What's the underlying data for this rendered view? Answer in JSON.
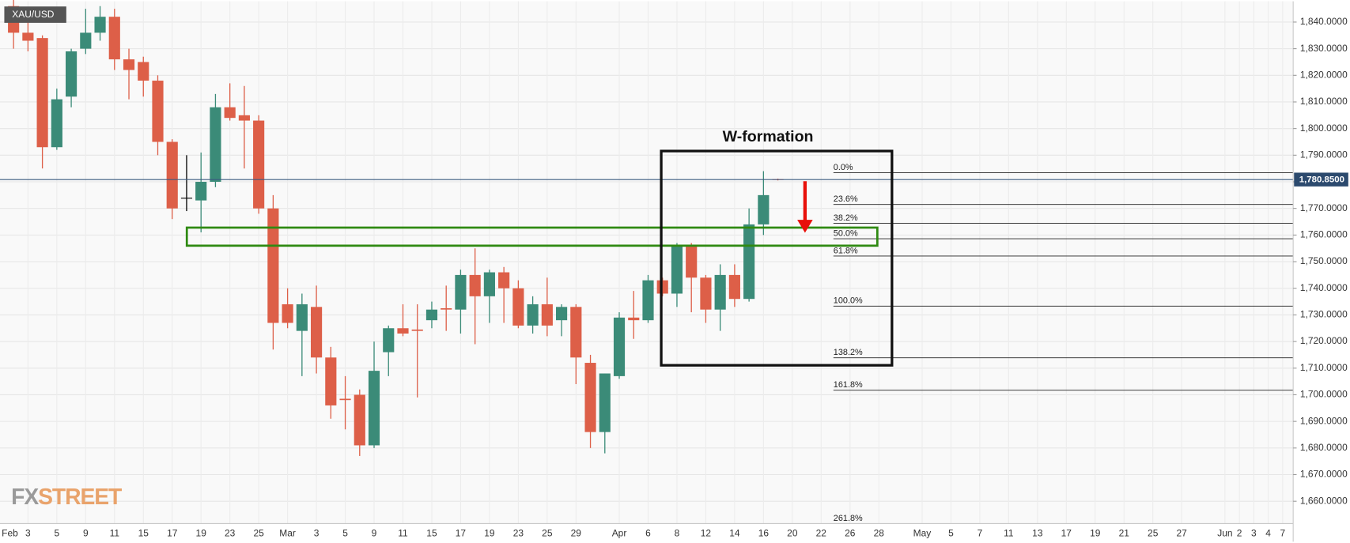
{
  "chart_data": {
    "type": "candlestick",
    "title": "XAU/USD",
    "annotation": "W-formation",
    "watermark": [
      "FX",
      "STREET"
    ],
    "up_color": "#3b8b78",
    "down_color": "#dd5f48",
    "doji_color": "#000000",
    "categories": [
      "Feb",
      null,
      "3",
      null,
      "5",
      null,
      "9",
      null,
      "11",
      null,
      "15",
      null,
      "17",
      null,
      "19",
      null,
      "23",
      null,
      "25",
      null,
      "Mar",
      null,
      "3",
      null,
      "5",
      null,
      "9",
      null,
      "11",
      null,
      "15",
      null,
      "17",
      null,
      "19",
      null,
      "23",
      null,
      "25",
      null,
      "29",
      null,
      null,
      "Apr",
      null,
      "6",
      null,
      "8",
      null,
      "12",
      null,
      "14",
      null,
      "16",
      null,
      "20",
      null,
      "22",
      null,
      "26",
      null,
      "28",
      null,
      null,
      "May",
      null,
      "5",
      null,
      "7",
      null,
      "11",
      null,
      "13",
      null,
      "17",
      null,
      "19",
      null,
      "21",
      null,
      "25",
      null,
      "27",
      null,
      null,
      "Jun",
      "2",
      "3",
      "4",
      "7"
    ],
    "open": [
      null,
      1846,
      1836,
      1834,
      1793,
      1812,
      1830,
      1836,
      1842,
      1826,
      1825,
      1818,
      1795,
      1774,
      1773,
      1780,
      1808,
      1805,
      1803,
      1770,
      1734,
      1724,
      1733,
      1714,
      1698.5,
      1700,
      1681,
      1716,
      1725,
      1724.5,
      1728,
      1732.5,
      1732,
      1745,
      1737,
      1746,
      1740,
      1726,
      1734,
      1728,
      1733,
      1712,
      1686,
      1707,
      1729,
      1728,
      1743,
      1738,
      1756,
      1744,
      1732,
      1745,
      1736,
      1764,
      1781,
      null,
      null,
      null,
      null,
      null,
      null,
      null,
      null,
      null,
      null,
      null,
      null,
      null,
      null,
      null,
      null,
      null,
      null,
      null,
      null,
      null,
      null,
      null,
      null,
      null,
      null,
      null,
      null,
      null,
      null,
      null,
      null,
      null,
      null,
      null
    ],
    "high": [
      null,
      1849,
      1842,
      1835,
      1815,
      1830,
      1845,
      1846,
      1845,
      1830,
      1827,
      1820,
      1796,
      1790,
      1791,
      1813,
      1817,
      1816,
      1805,
      1775,
      1740,
      1738,
      1741,
      1718,
      1707,
      1702,
      1720,
      1726,
      1734,
      1734,
      1735,
      1741,
      1747,
      1755,
      1747,
      1748,
      1743,
      1737,
      1744,
      1734,
      1734,
      1715,
      1708,
      1731,
      1739,
      1745,
      1744,
      1757,
      1757,
      1745,
      1749,
      1749,
      1770,
      1784,
      1781.2,
      null,
      null,
      null,
      null,
      null,
      null,
      null,
      null,
      null,
      null,
      null,
      null,
      null,
      null,
      null,
      null,
      null,
      null,
      null,
      null,
      null,
      null,
      null,
      null,
      null,
      null,
      null,
      null,
      null,
      null,
      null,
      null,
      null,
      null,
      null
    ],
    "low": [
      null,
      1830,
      1829,
      1785,
      1792,
      1808,
      1828,
      1833,
      1822,
      1811,
      1812,
      1790,
      1766,
      1769,
      1761,
      1778,
      1803,
      1785,
      1768,
      1717,
      1725,
      1707,
      1708,
      1691,
      1687,
      1677,
      1680,
      1707,
      1722,
      1699,
      1725,
      1724,
      1723,
      1719,
      1727,
      1727,
      1725,
      1723,
      1722,
      1722,
      1704,
      1680,
      1678,
      1706,
      1721,
      1727,
      1737,
      1733,
      1731,
      1727,
      1724,
      1733,
      1735,
      1760,
      1780.5,
      null,
      null,
      null,
      null,
      null,
      null,
      null,
      null,
      null,
      null,
      null,
      null,
      null,
      null,
      null,
      null,
      null,
      null,
      null,
      null,
      null,
      null,
      null,
      null,
      null,
      null,
      null,
      null,
      null,
      null,
      null,
      null,
      null,
      null,
      null
    ],
    "close": [
      null,
      1836,
      1833,
      1793,
      1811,
      1829,
      1836,
      1842,
      1826,
      1822,
      1818,
      1795,
      1770,
      1774,
      1780,
      1808,
      1804,
      1803,
      1770,
      1727,
      1727,
      1734,
      1714,
      1696,
      1698,
      1681,
      1709,
      1725,
      1723,
      1724,
      1732,
      1732,
      1745,
      1737,
      1746,
      1740,
      1726,
      1734,
      1726,
      1733,
      1714,
      1686,
      1708,
      1729,
      1728,
      1743,
      1738,
      1756,
      1744,
      1732,
      1745,
      1736,
      1764,
      1775,
      1780.85,
      null,
      null,
      null,
      null,
      null,
      null,
      null,
      null,
      null,
      null,
      null,
      null,
      null,
      null,
      null,
      null,
      null,
      null,
      null,
      null,
      null,
      null,
      null,
      null,
      null,
      null,
      null,
      null,
      null,
      null,
      null,
      null,
      null,
      null,
      null
    ],
    "xlim": [
      0.06,
      89.73
    ],
    "ylim": [
      1651.6,
      1847.8
    ],
    "yticks": [
      {
        "value": 1660,
        "label": "1,660.0000"
      },
      {
        "value": 1670,
        "label": "1,670.0000"
      },
      {
        "value": 1680,
        "label": "1,680.0000"
      },
      {
        "value": 1690,
        "label": "1,690.0000"
      },
      {
        "value": 1700,
        "label": "1,700.0000"
      },
      {
        "value": 1710,
        "label": "1,710.0000"
      },
      {
        "value": 1720,
        "label": "1,720.0000"
      },
      {
        "value": 1730,
        "label": "1,730.0000"
      },
      {
        "value": 1740,
        "label": "1,740.0000"
      },
      {
        "value": 1750,
        "label": "1,750.0000"
      },
      {
        "value": 1760,
        "label": "1,760.0000"
      },
      {
        "value": 1770,
        "label": "1,770.0000"
      },
      {
        "value": 1780,
        "label": "1,780.0000"
      },
      {
        "value": 1790,
        "label": "1,790.0000"
      },
      {
        "value": 1800,
        "label": "1,800.0000"
      },
      {
        "value": 1810,
        "label": "1,810.0000"
      },
      {
        "value": 1820,
        "label": "1,820.0000"
      },
      {
        "value": 1830,
        "label": "1,830.0000"
      },
      {
        "value": 1840,
        "label": "1,840.0000"
      }
    ],
    "last_price": {
      "value": 1780.85,
      "label": "1,780.8500"
    },
    "fib_levels": [
      {
        "label": "0.0%",
        "price": 1783.4
      },
      {
        "label": "23.6%",
        "price": 1771.5
      },
      {
        "label": "38.2%",
        "price": 1764.4
      },
      {
        "label": "50.0%",
        "price": 1758.6
      },
      {
        "label": "61.8%",
        "price": 1752.1
      },
      {
        "label": "100.0%",
        "price": 1733.3
      },
      {
        "label": "138.2%",
        "price": 1713.9
      },
      {
        "label": "161.8%",
        "price": 1701.7
      },
      {
        "label": "261.8%",
        "price": 1651.6
      }
    ],
    "grid": true
  }
}
